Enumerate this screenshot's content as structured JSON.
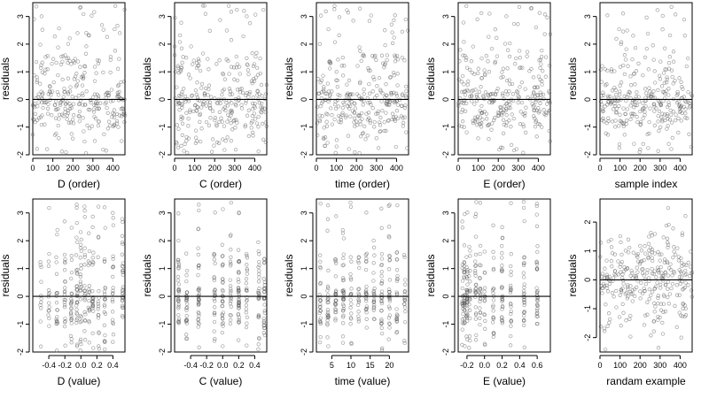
{
  "chart_data": [
    {
      "type": "scatter",
      "panel": 1,
      "xlabel": "D (order)",
      "ylabel": "residuals",
      "xlim": [
        0,
        460
      ],
      "ylim": [
        -2,
        3.5
      ],
      "xticks": [
        0,
        100,
        200,
        300,
        400
      ],
      "xticklabels": [
        "0",
        "100",
        "200",
        "300",
        "400"
      ],
      "yticks": [
        -2,
        -1,
        0,
        1,
        2,
        3
      ],
      "yticklabels": [
        "-2",
        "-1",
        "0",
        "1",
        "2",
        "3"
      ],
      "hline": 0,
      "pattern": "index",
      "n": 300,
      "seed": 11,
      "x_range": [
        0,
        460
      ]
    },
    {
      "type": "scatter",
      "panel": 2,
      "xlabel": "C (order)",
      "ylabel": "residuals",
      "xlim": [
        0,
        460
      ],
      "ylim": [
        -2,
        3.5
      ],
      "xticks": [
        0,
        100,
        200,
        300,
        400
      ],
      "xticklabels": [
        "0",
        "100",
        "200",
        "300",
        "400"
      ],
      "yticks": [
        -2,
        -1,
        0,
        1,
        2,
        3
      ],
      "yticklabels": [
        "-2",
        "-1",
        "0",
        "1",
        "2",
        "3"
      ],
      "hline": 0,
      "pattern": "index",
      "n": 300,
      "seed": 23,
      "x_range": [
        0,
        460
      ]
    },
    {
      "type": "scatter",
      "panel": 3,
      "xlabel": "time (order)",
      "ylabel": "residuals",
      "xlim": [
        0,
        460
      ],
      "ylim": [
        -2,
        3.5
      ],
      "xticks": [
        0,
        100,
        200,
        300,
        400
      ],
      "xticklabels": [
        "0",
        "100",
        "200",
        "300",
        "400"
      ],
      "yticks": [
        -2,
        -1,
        0,
        1,
        2,
        3
      ],
      "yticklabels": [
        "-2",
        "-1",
        "0",
        "1",
        "2",
        "3"
      ],
      "hline": 0,
      "pattern": "index",
      "n": 300,
      "seed": 37,
      "x_range": [
        0,
        460
      ]
    },
    {
      "type": "scatter",
      "panel": 4,
      "xlabel": "E (order)",
      "ylabel": "residuals",
      "xlim": [
        0,
        460
      ],
      "ylim": [
        -2,
        3.5
      ],
      "xticks": [
        0,
        100,
        200,
        300,
        400
      ],
      "xticklabels": [
        "0",
        "100",
        "200",
        "300",
        "400"
      ],
      "yticks": [
        -2,
        -1,
        0,
        1,
        2,
        3
      ],
      "yticklabels": [
        "-2",
        "-1",
        "0",
        "1",
        "2",
        "3"
      ],
      "hline": 0,
      "pattern": "index",
      "n": 300,
      "seed": 41,
      "x_range": [
        0,
        460
      ]
    },
    {
      "type": "scatter",
      "panel": 5,
      "xlabel": "sample index",
      "ylabel": "residuals",
      "xlim": [
        0,
        460
      ],
      "ylim": [
        -2,
        3.5
      ],
      "xticks": [
        0,
        100,
        200,
        300,
        400
      ],
      "xticklabels": [
        "0",
        "100",
        "200",
        "300",
        "400"
      ],
      "yticks": [
        -2,
        -1,
        0,
        1,
        2,
        3
      ],
      "yticklabels": [
        "-2",
        "-1",
        "0",
        "1",
        "2",
        "3"
      ],
      "hline": 0,
      "pattern": "index",
      "n": 300,
      "seed": 53,
      "x_range": [
        0,
        460
      ]
    },
    {
      "type": "scatter",
      "panel": 6,
      "xlabel": "D (value)",
      "ylabel": "residuals",
      "xlim": [
        -0.6,
        0.55
      ],
      "ylim": [
        -2,
        3.5
      ],
      "xticks": [
        -0.4,
        -0.2,
        0,
        0.2,
        0.4
      ],
      "xticklabels": [
        "-0.4",
        "-0.2",
        "0.0",
        "0.2",
        "0.4"
      ],
      "yticks": [
        -2,
        -1,
        0,
        1,
        2,
        3
      ],
      "yticklabels": [
        "-2",
        "-1",
        "0",
        "1",
        "2",
        "3"
      ],
      "hline": 0,
      "pattern": "clusters",
      "n": 300,
      "seed": 61,
      "clusters": [
        -0.5,
        -0.4,
        -0.3,
        -0.2,
        -0.12,
        -0.05,
        0.0,
        0.05,
        0.1,
        0.15,
        0.22,
        0.3,
        0.4,
        0.52
      ]
    },
    {
      "type": "scatter",
      "panel": 7,
      "xlabel": "C (value)",
      "ylabel": "residuals",
      "xlim": [
        -0.6,
        0.55
      ],
      "ylim": [
        -2,
        3.5
      ],
      "xticks": [
        -0.4,
        -0.2,
        0,
        0.2,
        0.4
      ],
      "xticklabels": [
        "-0.4",
        "-0.2",
        "0.0",
        "0.2",
        "0.4"
      ],
      "yticks": [
        -2,
        -1,
        0,
        1,
        2,
        3
      ],
      "yticklabels": [
        "-2",
        "-1",
        "0",
        "1",
        "2",
        "3"
      ],
      "hline": 0,
      "pattern": "clusters",
      "n": 300,
      "seed": 71,
      "clusters": [
        -0.55,
        -0.45,
        -0.3,
        -0.1,
        0.0,
        0.1,
        0.2,
        0.3,
        0.45,
        0.52
      ]
    },
    {
      "type": "scatter",
      "panel": 8,
      "xlabel": "time (value)",
      "ylabel": "residuals",
      "xlim": [
        1,
        25
      ],
      "ylim": [
        -2,
        3.5
      ],
      "xticks": [
        5,
        10,
        15,
        20
      ],
      "xticklabels": [
        "5",
        "10",
        "15",
        "20"
      ],
      "yticks": [
        -2,
        -1,
        0,
        1,
        2,
        3
      ],
      "yticklabels": [
        "-2",
        "-1",
        "0",
        "1",
        "2",
        "3"
      ],
      "hline": 0,
      "pattern": "clusters",
      "n": 300,
      "seed": 83,
      "clusters": [
        2,
        4,
        6,
        8,
        10,
        12,
        14,
        16,
        18,
        20,
        22,
        24
      ]
    },
    {
      "type": "scatter",
      "panel": 9,
      "xlabel": "E (value)",
      "ylabel": "residuals",
      "xlim": [
        -0.3,
        0.75
      ],
      "ylim": [
        -2,
        3.5
      ],
      "xticks": [
        -0.2,
        0,
        0.2,
        0.4,
        0.6
      ],
      "xticklabels": [
        "-0.2",
        "0.0",
        "0.2",
        "0.4",
        "0.6"
      ],
      "yticks": [
        -2,
        -1,
        0,
        1,
        2,
        3
      ],
      "yticklabels": [
        "-2",
        "-1",
        "0",
        "1",
        "2",
        "3"
      ],
      "hline": 0,
      "pattern": "clusters",
      "n": 300,
      "seed": 97,
      "clusters": [
        -0.25,
        -0.23,
        -0.2,
        -0.17,
        -0.1,
        -0.05,
        0.0,
        0.1,
        0.2,
        0.3,
        0.45,
        0.6
      ]
    },
    {
      "type": "scatter",
      "panel": 10,
      "xlabel": "randam example",
      "ylabel": "residuals",
      "xlim": [
        0,
        460
      ],
      "ylim": [
        -2.5,
        2.8
      ],
      "xticks": [
        0,
        100,
        200,
        300,
        400
      ],
      "xticklabels": [
        "0",
        "100",
        "200",
        "300",
        "400"
      ],
      "yticks": [
        -2,
        -1,
        0,
        1,
        2
      ],
      "yticklabels": [
        "-2",
        "-1",
        "0",
        "1",
        "2"
      ],
      "hline": 0,
      "pattern": "normal",
      "n": 300,
      "seed": 103,
      "x_range": [
        0,
        460
      ]
    }
  ]
}
